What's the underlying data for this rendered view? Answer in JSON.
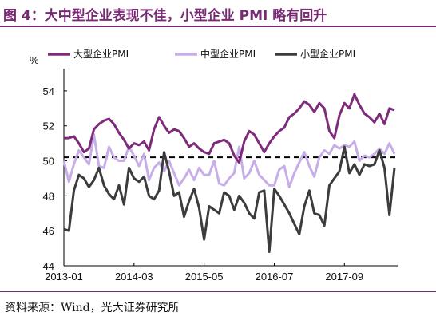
{
  "figure": {
    "title": "图 4：大中型企业表现不佳，小型企业 PMI 略有回升",
    "source": "资料来源：Wind，光大证券研究所"
  },
  "chart_data": {
    "type": "line",
    "ylabel": "%",
    "ylim": [
      44,
      55
    ],
    "yticks": [
      44,
      46,
      48,
      50,
      52,
      54
    ],
    "xticks": [
      "2013-01",
      "2014-03",
      "2015-05",
      "2016-07",
      "2017-09"
    ],
    "xtick_index": [
      0,
      14,
      28,
      42,
      56
    ],
    "reference_line": 50.2,
    "grid": false,
    "legend_position": "top",
    "series": [
      {
        "name": "大型企业PMI",
        "color": "#7d2b7a",
        "values": [
          51.3,
          51.3,
          51.4,
          51.0,
          50.5,
          50.7,
          51.8,
          52.1,
          52.3,
          52.4,
          52.1,
          51.6,
          51.2,
          50.7,
          51.0,
          50.9,
          51.1,
          50.6,
          51.8,
          52.5,
          52.0,
          51.6,
          51.8,
          51.7,
          51.3,
          50.8,
          51.0,
          50.7,
          50.5,
          50.4,
          51.0,
          51.1,
          51.2,
          51.0,
          50.3,
          49.9,
          51.1,
          51.7,
          51.5,
          51.0,
          50.5,
          51.0,
          51.4,
          51.7,
          51.9,
          52.5,
          52.7,
          53.0,
          53.4,
          53.2,
          52.8,
          53.3,
          53.0,
          51.7,
          51.3,
          52.6,
          53.3,
          53.0,
          53.8,
          53.2,
          52.7,
          52.5,
          52.2,
          52.7,
          52.1,
          53.0,
          52.9
        ]
      },
      {
        "name": "中型企业PMI",
        "color": "#c8aee8",
        "values": [
          50.0,
          48.8,
          49.8,
          50.6,
          50.2,
          49.8,
          51.5,
          49.7,
          49.6,
          50.8,
          50.2,
          50.0,
          50.0,
          50.8,
          50.3,
          49.7,
          50.4,
          48.9,
          49.6,
          49.9,
          49.4,
          50.0,
          49.3,
          48.6,
          49.0,
          49.5,
          48.9,
          49.6,
          49.2,
          49.2,
          50.0,
          48.7,
          48.6,
          49.0,
          49.3,
          50.8,
          49.0,
          49.3,
          50.0,
          49.2,
          48.9,
          48.6,
          48.6,
          49.5,
          49.7,
          48.5,
          49.3,
          49.9,
          50.5,
          49.7,
          49.1,
          50.2,
          50.6,
          50.4,
          50.9,
          50.7,
          50.9,
          50.8,
          51.1,
          50.0,
          50.3,
          50.2,
          50.4,
          50.7,
          50.4,
          51.0,
          50.4
        ]
      },
      {
        "name": "小型企业PMI",
        "color": "#3c3c3c",
        "values": [
          46.1,
          46.0,
          48.3,
          49.2,
          49.0,
          48.5,
          48.9,
          49.6,
          48.6,
          48.1,
          47.8,
          48.6,
          47.5,
          49.6,
          49.0,
          48.8,
          49.1,
          48.0,
          47.8,
          48.3,
          50.5,
          49.4,
          48.0,
          48.2,
          46.8,
          47.7,
          48.4,
          47.3,
          45.5,
          47.4,
          47.2,
          47.0,
          48.2,
          48.0,
          47.2,
          48.0,
          47.6,
          47.0,
          46.7,
          48.2,
          48.3,
          44.8,
          48.4,
          48.0,
          47.5,
          47.0,
          46.4,
          45.8,
          47.4,
          48.3,
          47.0,
          46.9,
          46.3,
          48.6,
          49.0,
          49.4,
          50.8,
          49.3,
          49.8,
          49.2,
          49.8,
          49.7,
          49.8,
          50.6,
          49.6,
          46.9,
          49.6
        ]
      }
    ]
  }
}
